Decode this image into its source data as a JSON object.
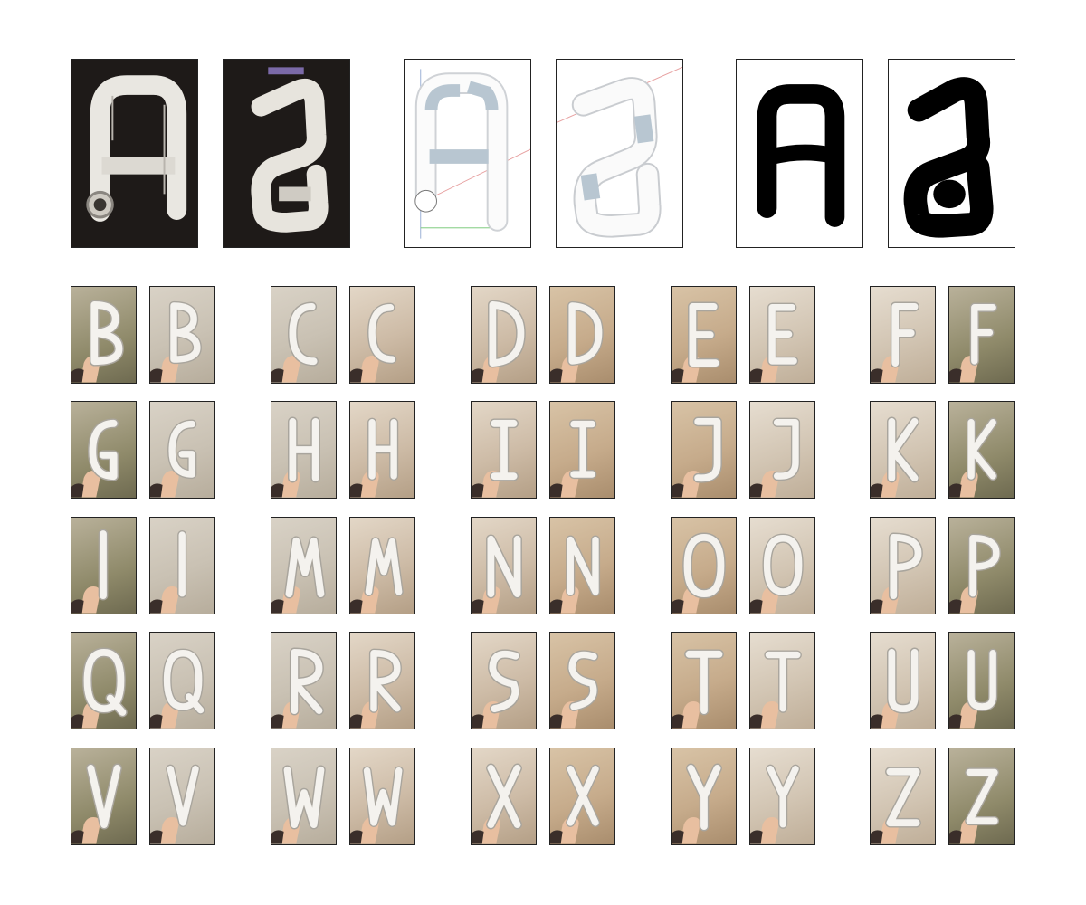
{
  "figure": {
    "description_kind": "pvc-pipe-alphabet",
    "hero": {
      "panels": [
        {
          "kind": "photo",
          "glyph": "A"
        },
        {
          "kind": "photo",
          "glyph": "a"
        },
        {
          "kind": "render",
          "glyph": "A"
        },
        {
          "kind": "render",
          "glyph": "a"
        },
        {
          "kind": "silhouette",
          "glyph": "A"
        },
        {
          "kind": "silhouette",
          "glyph": "a"
        }
      ]
    },
    "alphabet": [
      [
        "B",
        "b"
      ],
      [
        "C",
        "c"
      ],
      [
        "D",
        "d"
      ],
      [
        "E",
        "e"
      ],
      [
        "F",
        "f"
      ],
      [
        "G",
        "g"
      ],
      [
        "H",
        "h"
      ],
      [
        "I",
        "i"
      ],
      [
        "J",
        "j"
      ],
      [
        "K",
        "k"
      ],
      [
        "L",
        "l"
      ],
      [
        "M",
        "m"
      ],
      [
        "N",
        "n"
      ],
      [
        "O",
        "o"
      ],
      [
        "P",
        "p"
      ],
      [
        "Q",
        "q"
      ],
      [
        "R",
        "r"
      ],
      [
        "S",
        "s"
      ],
      [
        "T",
        "t"
      ],
      [
        "U",
        "u"
      ],
      [
        "V",
        "v"
      ],
      [
        "W",
        "w"
      ],
      [
        "X",
        "x"
      ],
      [
        "Y",
        "y"
      ],
      [
        "Z",
        "z"
      ]
    ]
  }
}
